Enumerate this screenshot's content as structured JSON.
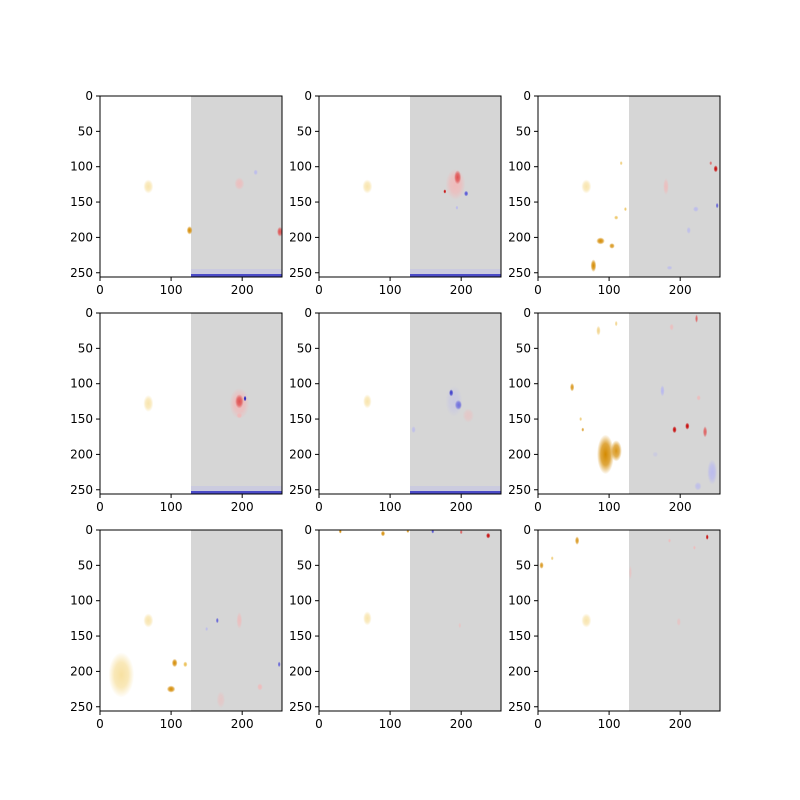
{
  "chart_data": {
    "type": "heatmap",
    "layout": {
      "rows": 3,
      "cols": 3
    },
    "axes": {
      "x_range": [
        0,
        256
      ],
      "y_range_top_to_bottom": [
        0,
        256
      ],
      "x_ticks": [
        0,
        100,
        200
      ],
      "y_ticks": [
        0,
        50,
        100,
        150,
        200,
        250
      ],
      "grid": false
    },
    "panel_style": {
      "left_half_background": "#ffffff",
      "right_half_background": "#d6d6d6",
      "split_x": 128,
      "bottom_blue_band_panels": [
        0,
        1,
        3,
        4
      ]
    },
    "colors": {
      "yellow_light": "#f5d98a",
      "yellow": "#e8b63a",
      "orange": "#d48a00",
      "red_light": "#f2b8b8",
      "red": "#e05050",
      "red_dark": "#c80000",
      "blue_light": "#b8b8f0",
      "blue": "#5050d8",
      "blue_dark": "#1010c0"
    },
    "panels": [
      {
        "blobs": [
          {
            "x": 68,
            "y": 128,
            "rx": 7,
            "ry": 10,
            "c": "yellow_light",
            "o": 0.7
          },
          {
            "x": 196,
            "y": 124,
            "rx": 7,
            "ry": 9,
            "c": "red_light",
            "o": 0.8
          },
          {
            "x": 219,
            "y": 108,
            "rx": 3,
            "ry": 4,
            "c": "blue_light",
            "o": 0.9
          },
          {
            "x": 126,
            "y": 190,
            "rx": 4,
            "ry": 6,
            "c": "orange",
            "o": 1
          },
          {
            "x": 253,
            "y": 192,
            "rx": 4,
            "ry": 7,
            "c": "red",
            "o": 1
          }
        ]
      },
      {
        "blobs": [
          {
            "x": 68,
            "y": 128,
            "rx": 7,
            "ry": 10,
            "c": "yellow_light",
            "o": 0.7
          },
          {
            "x": 192,
            "y": 125,
            "rx": 14,
            "ry": 22,
            "c": "red_light",
            "o": 0.9
          },
          {
            "x": 195,
            "y": 115,
            "rx": 5,
            "ry": 10,
            "c": "red",
            "o": 1
          },
          {
            "x": 177,
            "y": 135,
            "rx": 2,
            "ry": 3,
            "c": "red_dark",
            "o": 1
          },
          {
            "x": 207,
            "y": 138,
            "rx": 3,
            "ry": 4,
            "c": "blue",
            "o": 1
          },
          {
            "x": 194,
            "y": 158,
            "rx": 2,
            "ry": 3,
            "c": "blue_light",
            "o": 1
          }
        ]
      },
      {
        "blobs": [
          {
            "x": 68,
            "y": 128,
            "rx": 7,
            "ry": 10,
            "c": "yellow_light",
            "o": 0.7
          },
          {
            "x": 78,
            "y": 240,
            "rx": 4,
            "ry": 9,
            "c": "orange",
            "o": 1
          },
          {
            "x": 88,
            "y": 205,
            "rx": 6,
            "ry": 5,
            "c": "orange",
            "o": 1
          },
          {
            "x": 104,
            "y": 212,
            "rx": 4,
            "ry": 4,
            "c": "orange",
            "o": 0.9
          },
          {
            "x": 110,
            "y": 172,
            "rx": 3,
            "ry": 3,
            "c": "yellow",
            "o": 0.8
          },
          {
            "x": 123,
            "y": 160,
            "rx": 2,
            "ry": 3,
            "c": "yellow",
            "o": 0.8
          },
          {
            "x": 117,
            "y": 95,
            "rx": 2,
            "ry": 3,
            "c": "yellow",
            "o": 0.7
          },
          {
            "x": 180,
            "y": 128,
            "rx": 4,
            "ry": 12,
            "c": "red_light",
            "o": 0.8
          },
          {
            "x": 250,
            "y": 103,
            "rx": 3,
            "ry": 5,
            "c": "red_dark",
            "o": 1
          },
          {
            "x": 243,
            "y": 95,
            "rx": 2,
            "ry": 3,
            "c": "red",
            "o": 0.8
          },
          {
            "x": 222,
            "y": 160,
            "rx": 4,
            "ry": 4,
            "c": "blue_light",
            "o": 0.9
          },
          {
            "x": 212,
            "y": 190,
            "rx": 3,
            "ry": 5,
            "c": "blue_light",
            "o": 0.8
          },
          {
            "x": 185,
            "y": 243,
            "rx": 4,
            "ry": 3,
            "c": "blue_light",
            "o": 0.8
          },
          {
            "x": 252,
            "y": 155,
            "rx": 2,
            "ry": 4,
            "c": "blue",
            "o": 0.9
          }
        ]
      },
      {
        "blobs": [
          {
            "x": 68,
            "y": 128,
            "rx": 7,
            "ry": 12,
            "c": "yellow_light",
            "o": 0.7
          },
          {
            "x": 196,
            "y": 128,
            "rx": 14,
            "ry": 22,
            "c": "red_light",
            "o": 0.9
          },
          {
            "x": 196,
            "y": 125,
            "rx": 6,
            "ry": 10,
            "c": "red",
            "o": 1
          },
          {
            "x": 204,
            "y": 121,
            "rx": 2,
            "ry": 4,
            "c": "blue_dark",
            "o": 1
          },
          {
            "x": 196,
            "y": 145,
            "rx": 4,
            "ry": 4,
            "c": "red_light",
            "o": 1
          }
        ]
      },
      {
        "blobs": [
          {
            "x": 68,
            "y": 125,
            "rx": 6,
            "ry": 10,
            "c": "yellow_light",
            "o": 0.7
          },
          {
            "x": 186,
            "y": 113,
            "rx": 3,
            "ry": 5,
            "c": "blue_dark",
            "o": 1
          },
          {
            "x": 196,
            "y": 130,
            "rx": 5,
            "ry": 7,
            "c": "blue",
            "o": 1
          },
          {
            "x": 190,
            "y": 125,
            "rx": 12,
            "ry": 22,
            "c": "blue_light",
            "o": 0.4
          },
          {
            "x": 210,
            "y": 145,
            "rx": 8,
            "ry": 10,
            "c": "red_light",
            "o": 0.5
          },
          {
            "x": 133,
            "y": 165,
            "rx": 3,
            "ry": 5,
            "c": "blue_light",
            "o": 0.8
          }
        ]
      },
      {
        "blobs": [
          {
            "x": 48,
            "y": 105,
            "rx": 3,
            "ry": 6,
            "c": "orange",
            "o": 0.9
          },
          {
            "x": 60,
            "y": 150,
            "rx": 2,
            "ry": 3,
            "c": "yellow",
            "o": 0.7
          },
          {
            "x": 85,
            "y": 25,
            "rx": 3,
            "ry": 7,
            "c": "yellow",
            "o": 0.6
          },
          {
            "x": 110,
            "y": 15,
            "rx": 2,
            "ry": 4,
            "c": "yellow",
            "o": 0.6
          },
          {
            "x": 95,
            "y": 200,
            "rx": 12,
            "ry": 28,
            "c": "orange",
            "o": 1
          },
          {
            "x": 110,
            "y": 195,
            "rx": 8,
            "ry": 15,
            "c": "orange",
            "o": 0.9
          },
          {
            "x": 63,
            "y": 165,
            "rx": 2,
            "ry": 3,
            "c": "orange",
            "o": 0.8
          },
          {
            "x": 175,
            "y": 110,
            "rx": 3,
            "ry": 8,
            "c": "blue_light",
            "o": 1
          },
          {
            "x": 192,
            "y": 165,
            "rx": 3,
            "ry": 5,
            "c": "red_dark",
            "o": 1
          },
          {
            "x": 210,
            "y": 160,
            "rx": 3,
            "ry": 5,
            "c": "red_dark",
            "o": 1
          },
          {
            "x": 235,
            "y": 168,
            "rx": 3,
            "ry": 8,
            "c": "red",
            "o": 0.9
          },
          {
            "x": 226,
            "y": 120,
            "rx": 3,
            "ry": 4,
            "c": "red_light",
            "o": 0.9
          },
          {
            "x": 223,
            "y": 8,
            "rx": 2,
            "ry": 6,
            "c": "red",
            "o": 0.9
          },
          {
            "x": 245,
            "y": 225,
            "rx": 7,
            "ry": 18,
            "c": "blue_light",
            "o": 0.9
          },
          {
            "x": 225,
            "y": 245,
            "rx": 5,
            "ry": 6,
            "c": "blue_light",
            "o": 0.8
          },
          {
            "x": 165,
            "y": 200,
            "rx": 4,
            "ry": 4,
            "c": "blue_light",
            "o": 0.4
          },
          {
            "x": 188,
            "y": 20,
            "rx": 3,
            "ry": 5,
            "c": "red_light",
            "o": 0.8
          }
        ]
      },
      {
        "blobs": [
          {
            "x": 30,
            "y": 205,
            "rx": 18,
            "ry": 32,
            "c": "yellow_light",
            "o": 0.8
          },
          {
            "x": 68,
            "y": 128,
            "rx": 7,
            "ry": 10,
            "c": "yellow_light",
            "o": 0.7
          },
          {
            "x": 105,
            "y": 188,
            "rx": 4,
            "ry": 6,
            "c": "orange",
            "o": 1
          },
          {
            "x": 100,
            "y": 225,
            "rx": 6,
            "ry": 5,
            "c": "orange",
            "o": 1
          },
          {
            "x": 120,
            "y": 190,
            "rx": 3,
            "ry": 4,
            "c": "yellow",
            "o": 0.9
          },
          {
            "x": 165,
            "y": 128,
            "rx": 2,
            "ry": 4,
            "c": "blue",
            "o": 0.9
          },
          {
            "x": 150,
            "y": 140,
            "rx": 2,
            "ry": 3,
            "c": "blue_light",
            "o": 0.9
          },
          {
            "x": 196,
            "y": 128,
            "rx": 4,
            "ry": 12,
            "c": "red_light",
            "o": 0.8
          },
          {
            "x": 225,
            "y": 222,
            "rx": 4,
            "ry": 5,
            "c": "red_light",
            "o": 0.9
          },
          {
            "x": 170,
            "y": 240,
            "rx": 6,
            "ry": 12,
            "c": "red_light",
            "o": 0.5
          },
          {
            "x": 252,
            "y": 190,
            "rx": 2,
            "ry": 4,
            "c": "blue",
            "o": 0.9
          }
        ]
      },
      {
        "blobs": [
          {
            "x": 68,
            "y": 125,
            "rx": 6,
            "ry": 10,
            "c": "yellow_light",
            "o": 0.7
          },
          {
            "x": 30,
            "y": 2,
            "rx": 2,
            "ry": 3,
            "c": "orange",
            "o": 1
          },
          {
            "x": 90,
            "y": 5,
            "rx": 3,
            "ry": 4,
            "c": "orange",
            "o": 1
          },
          {
            "x": 125,
            "y": 2,
            "rx": 2,
            "ry": 2,
            "c": "orange",
            "o": 0.9
          },
          {
            "x": 160,
            "y": 2,
            "rx": 2,
            "ry": 3,
            "c": "blue",
            "o": 1
          },
          {
            "x": 238,
            "y": 8,
            "rx": 3,
            "ry": 4,
            "c": "red_dark",
            "o": 1
          },
          {
            "x": 200,
            "y": 3,
            "rx": 2,
            "ry": 3,
            "c": "red",
            "o": 0.9
          },
          {
            "x": 198,
            "y": 135,
            "rx": 2,
            "ry": 4,
            "c": "red_light",
            "o": 0.6
          }
        ]
      },
      {
        "blobs": [
          {
            "x": 68,
            "y": 128,
            "rx": 7,
            "ry": 10,
            "c": "yellow_light",
            "o": 0.7
          },
          {
            "x": 5,
            "y": 50,
            "rx": 3,
            "ry": 5,
            "c": "orange",
            "o": 0.9
          },
          {
            "x": 55,
            "y": 15,
            "rx": 3,
            "ry": 6,
            "c": "orange",
            "o": 0.9
          },
          {
            "x": 20,
            "y": 40,
            "rx": 2,
            "ry": 3,
            "c": "yellow",
            "o": 0.7
          },
          {
            "x": 185,
            "y": 15,
            "rx": 2,
            "ry": 3,
            "c": "red_light",
            "o": 0.9
          },
          {
            "x": 220,
            "y": 25,
            "rx": 2,
            "ry": 3,
            "c": "red_light",
            "o": 0.9
          },
          {
            "x": 238,
            "y": 10,
            "rx": 2,
            "ry": 4,
            "c": "red_dark",
            "o": 1
          },
          {
            "x": 130,
            "y": 60,
            "rx": 2,
            "ry": 10,
            "c": "red_light",
            "o": 0.6
          },
          {
            "x": 198,
            "y": 130,
            "rx": 3,
            "ry": 6,
            "c": "red_light",
            "o": 0.6
          }
        ]
      }
    ]
  }
}
